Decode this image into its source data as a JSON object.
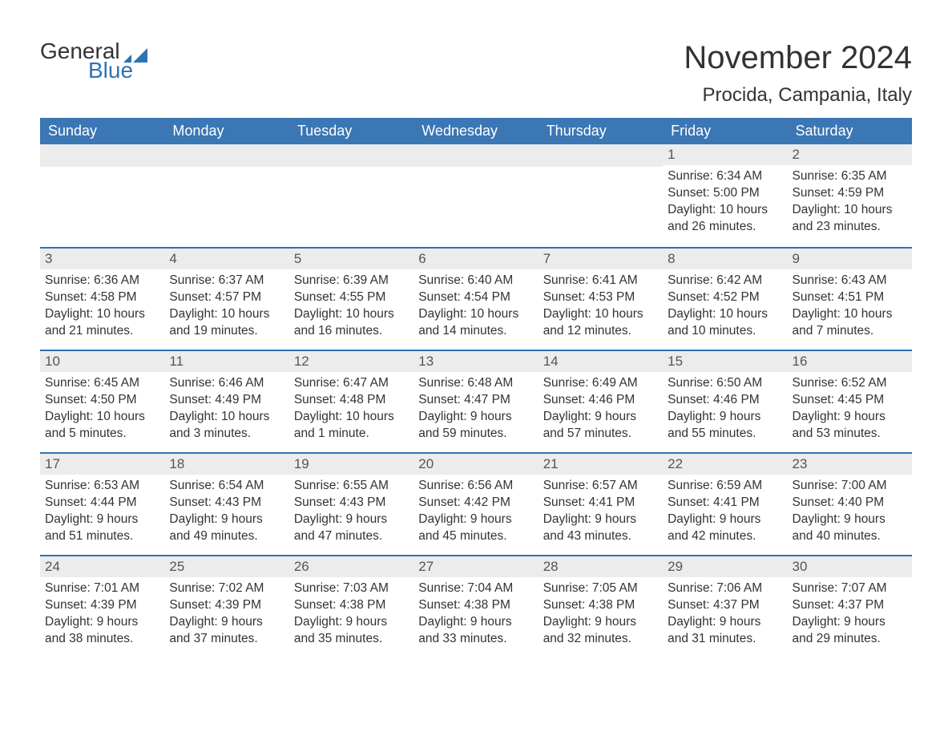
{
  "logo": {
    "text_general": "General",
    "text_blue": "Blue",
    "flag_color": "#2f72b5"
  },
  "title": "November 2024",
  "location": "Procida, Campania, Italy",
  "colors": {
    "header_bg": "#3b76b5",
    "header_text": "#ffffff",
    "daynum_bg": "#ececec",
    "daynum_border": "#2f72b5",
    "text": "#333333",
    "logo_blue": "#2f72b5"
  },
  "day_labels": [
    "Sunday",
    "Monday",
    "Tuesday",
    "Wednesday",
    "Thursday",
    "Friday",
    "Saturday"
  ],
  "weeks": [
    [
      {
        "blank": true
      },
      {
        "blank": true
      },
      {
        "blank": true
      },
      {
        "blank": true
      },
      {
        "blank": true
      },
      {
        "day": 1,
        "sunrise": "6:34 AM",
        "sunset": "5:00 PM",
        "daylight": "10 hours and 26 minutes."
      },
      {
        "day": 2,
        "sunrise": "6:35 AM",
        "sunset": "4:59 PM",
        "daylight": "10 hours and 23 minutes."
      }
    ],
    [
      {
        "day": 3,
        "sunrise": "6:36 AM",
        "sunset": "4:58 PM",
        "daylight": "10 hours and 21 minutes."
      },
      {
        "day": 4,
        "sunrise": "6:37 AM",
        "sunset": "4:57 PM",
        "daylight": "10 hours and 19 minutes."
      },
      {
        "day": 5,
        "sunrise": "6:39 AM",
        "sunset": "4:55 PM",
        "daylight": "10 hours and 16 minutes."
      },
      {
        "day": 6,
        "sunrise": "6:40 AM",
        "sunset": "4:54 PM",
        "daylight": "10 hours and 14 minutes."
      },
      {
        "day": 7,
        "sunrise": "6:41 AM",
        "sunset": "4:53 PM",
        "daylight": "10 hours and 12 minutes."
      },
      {
        "day": 8,
        "sunrise": "6:42 AM",
        "sunset": "4:52 PM",
        "daylight": "10 hours and 10 minutes."
      },
      {
        "day": 9,
        "sunrise": "6:43 AM",
        "sunset": "4:51 PM",
        "daylight": "10 hours and 7 minutes."
      }
    ],
    [
      {
        "day": 10,
        "sunrise": "6:45 AM",
        "sunset": "4:50 PM",
        "daylight": "10 hours and 5 minutes."
      },
      {
        "day": 11,
        "sunrise": "6:46 AM",
        "sunset": "4:49 PM",
        "daylight": "10 hours and 3 minutes."
      },
      {
        "day": 12,
        "sunrise": "6:47 AM",
        "sunset": "4:48 PM",
        "daylight": "10 hours and 1 minute."
      },
      {
        "day": 13,
        "sunrise": "6:48 AM",
        "sunset": "4:47 PM",
        "daylight": "9 hours and 59 minutes."
      },
      {
        "day": 14,
        "sunrise": "6:49 AM",
        "sunset": "4:46 PM",
        "daylight": "9 hours and 57 minutes."
      },
      {
        "day": 15,
        "sunrise": "6:50 AM",
        "sunset": "4:46 PM",
        "daylight": "9 hours and 55 minutes."
      },
      {
        "day": 16,
        "sunrise": "6:52 AM",
        "sunset": "4:45 PM",
        "daylight": "9 hours and 53 minutes."
      }
    ],
    [
      {
        "day": 17,
        "sunrise": "6:53 AM",
        "sunset": "4:44 PM",
        "daylight": "9 hours and 51 minutes."
      },
      {
        "day": 18,
        "sunrise": "6:54 AM",
        "sunset": "4:43 PM",
        "daylight": "9 hours and 49 minutes."
      },
      {
        "day": 19,
        "sunrise": "6:55 AM",
        "sunset": "4:43 PM",
        "daylight": "9 hours and 47 minutes."
      },
      {
        "day": 20,
        "sunrise": "6:56 AM",
        "sunset": "4:42 PM",
        "daylight": "9 hours and 45 minutes."
      },
      {
        "day": 21,
        "sunrise": "6:57 AM",
        "sunset": "4:41 PM",
        "daylight": "9 hours and 43 minutes."
      },
      {
        "day": 22,
        "sunrise": "6:59 AM",
        "sunset": "4:41 PM",
        "daylight": "9 hours and 42 minutes."
      },
      {
        "day": 23,
        "sunrise": "7:00 AM",
        "sunset": "4:40 PM",
        "daylight": "9 hours and 40 minutes."
      }
    ],
    [
      {
        "day": 24,
        "sunrise": "7:01 AM",
        "sunset": "4:39 PM",
        "daylight": "9 hours and 38 minutes."
      },
      {
        "day": 25,
        "sunrise": "7:02 AM",
        "sunset": "4:39 PM",
        "daylight": "9 hours and 37 minutes."
      },
      {
        "day": 26,
        "sunrise": "7:03 AM",
        "sunset": "4:38 PM",
        "daylight": "9 hours and 35 minutes."
      },
      {
        "day": 27,
        "sunrise": "7:04 AM",
        "sunset": "4:38 PM",
        "daylight": "9 hours and 33 minutes."
      },
      {
        "day": 28,
        "sunrise": "7:05 AM",
        "sunset": "4:38 PM",
        "daylight": "9 hours and 32 minutes."
      },
      {
        "day": 29,
        "sunrise": "7:06 AM",
        "sunset": "4:37 PM",
        "daylight": "9 hours and 31 minutes."
      },
      {
        "day": 30,
        "sunrise": "7:07 AM",
        "sunset": "4:37 PM",
        "daylight": "9 hours and 29 minutes."
      }
    ]
  ],
  "labels": {
    "sunrise_prefix": "Sunrise: ",
    "sunset_prefix": "Sunset: ",
    "daylight_prefix": "Daylight: "
  }
}
